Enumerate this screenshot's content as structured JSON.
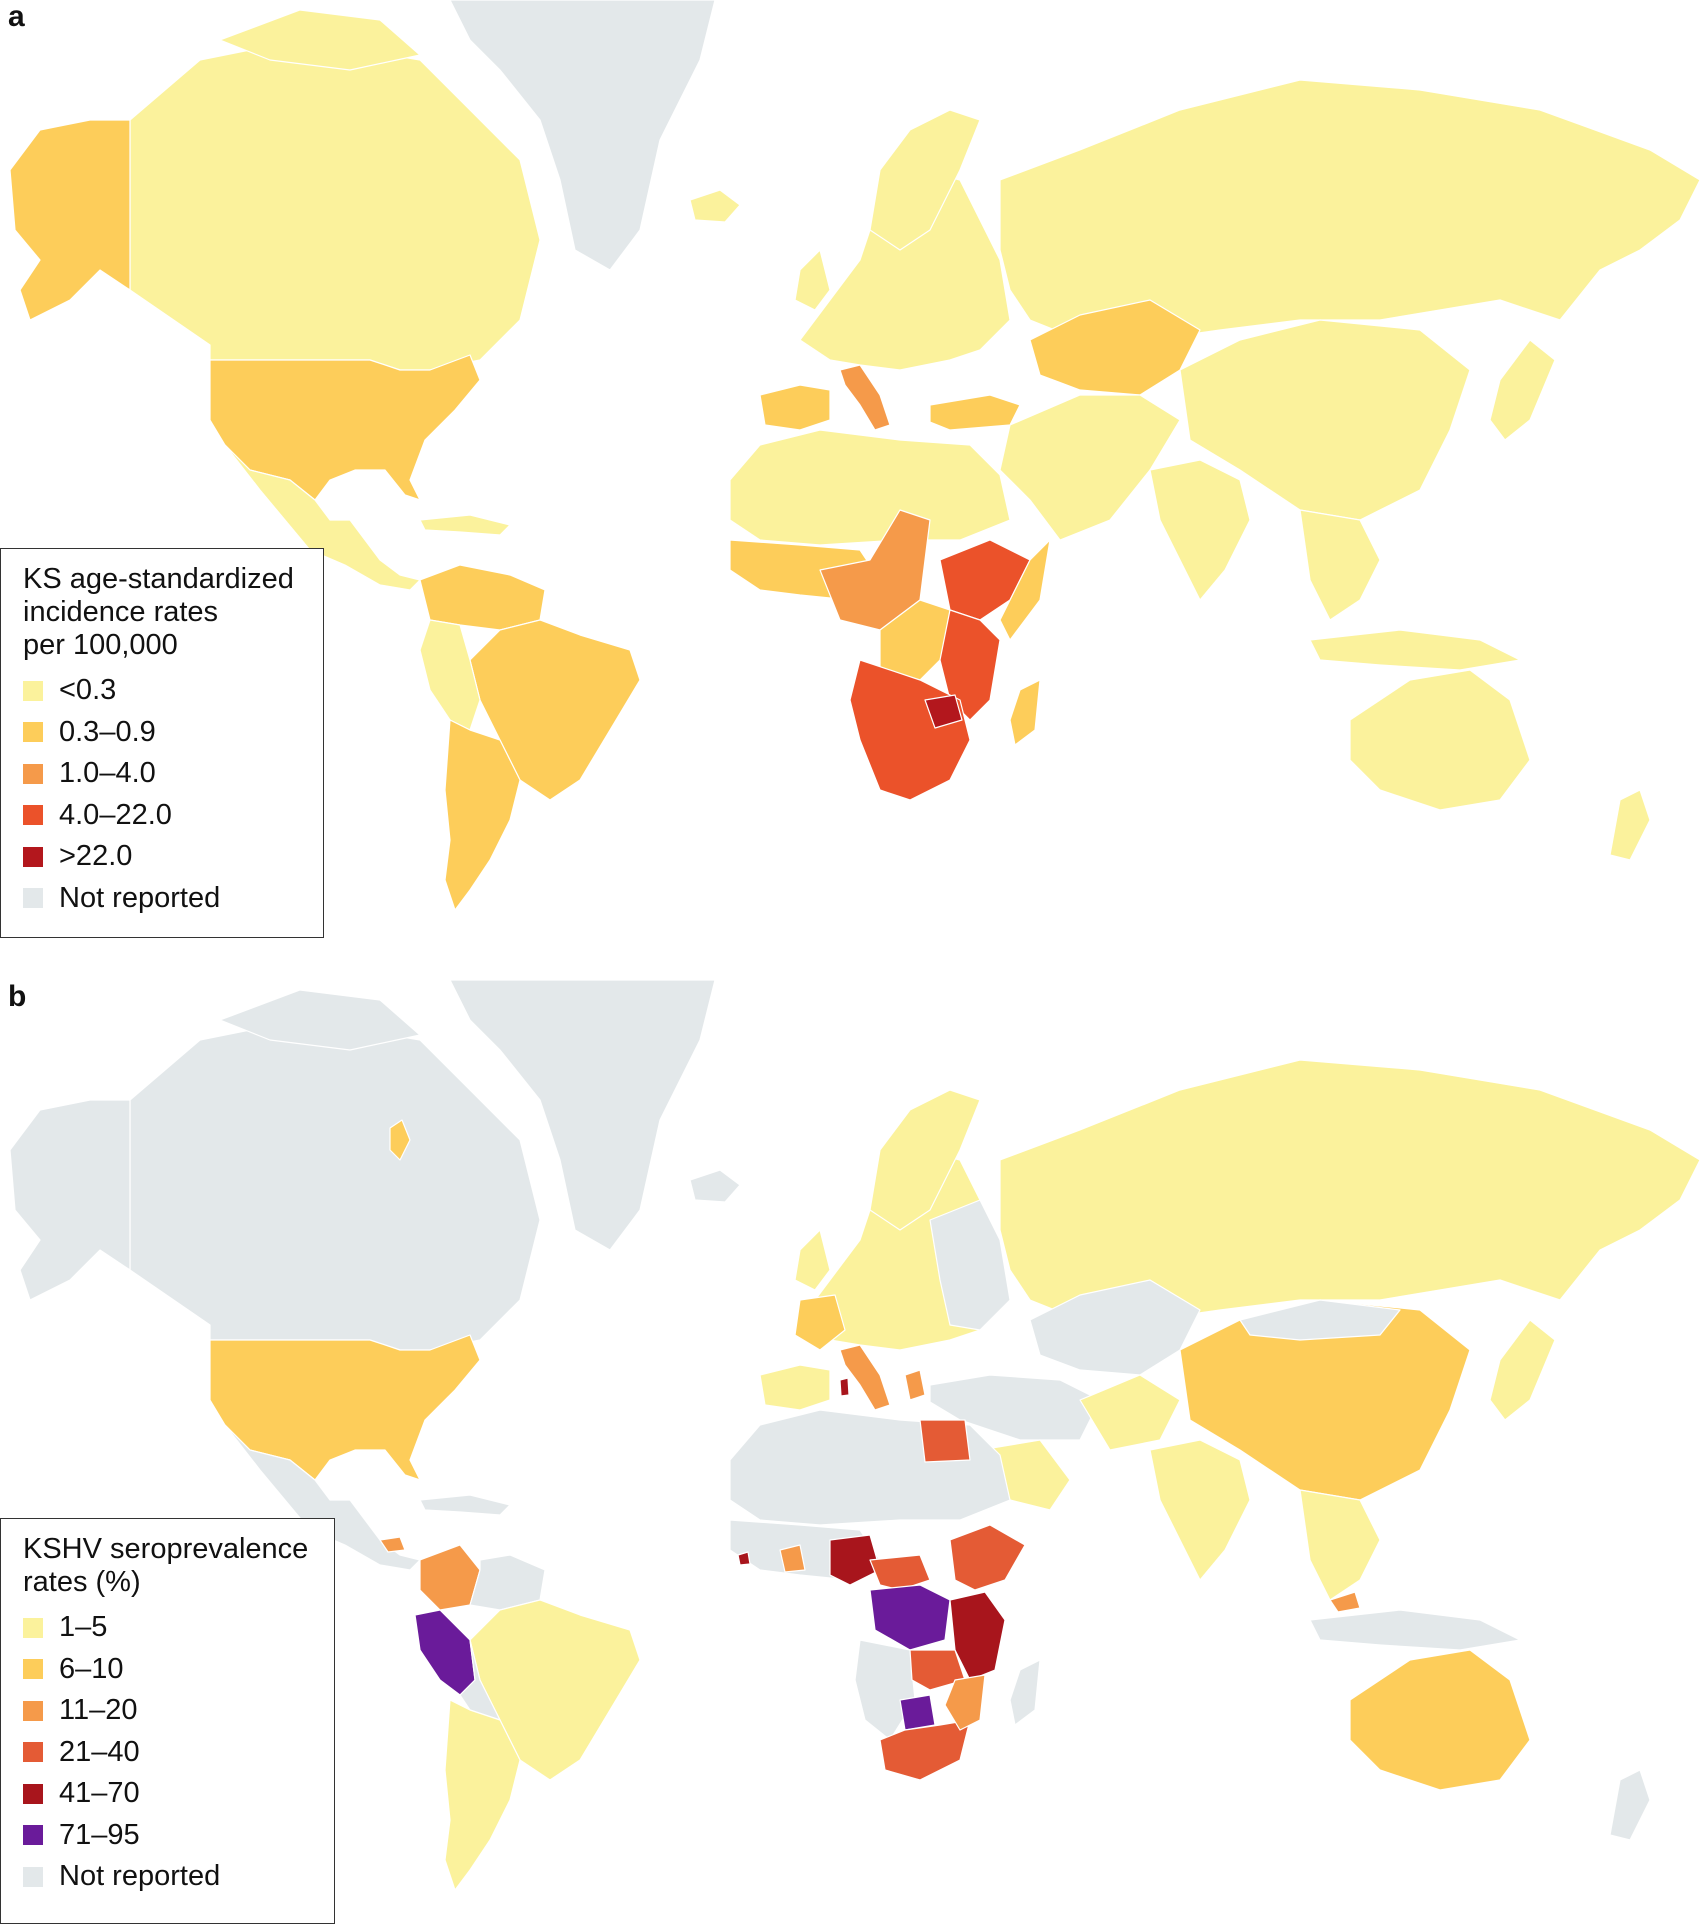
{
  "panels": {
    "a": {
      "letter": "a",
      "legend": {
        "title_lines": [
          "KS age-standardized",
          "incidence rates",
          "per 100,000"
        ],
        "items": [
          {
            "label": "<0.3",
            "color": "#fbf29c"
          },
          {
            "label": "0.3–0.9",
            "color": "#fdcd5a"
          },
          {
            "label": "1.0–4.0",
            "color": "#f59a4a"
          },
          {
            "label": "4.0–22.0",
            "color": "#eb522a"
          },
          {
            "label": ">22.0",
            "color": "#b3171d"
          },
          {
            "label": "Not reported",
            "color": "#e3e8ea"
          }
        ]
      }
    },
    "b": {
      "letter": "b",
      "legend": {
        "title_lines": [
          "KSHV seroprevalence",
          "rates (%)"
        ],
        "items": [
          {
            "label": "1–5",
            "color": "#fbf29c"
          },
          {
            "label": "6–10",
            "color": "#fdcd5a"
          },
          {
            "label": "11–20",
            "color": "#f59a4a"
          },
          {
            "label": "21–40",
            "color": "#e45b35"
          },
          {
            "label": "41–70",
            "color": "#a8151c"
          },
          {
            "label": "71–95",
            "color": "#6a1b9a"
          },
          {
            "label": "Not reported",
            "color": "#e3e8ea"
          }
        ]
      }
    }
  }
}
